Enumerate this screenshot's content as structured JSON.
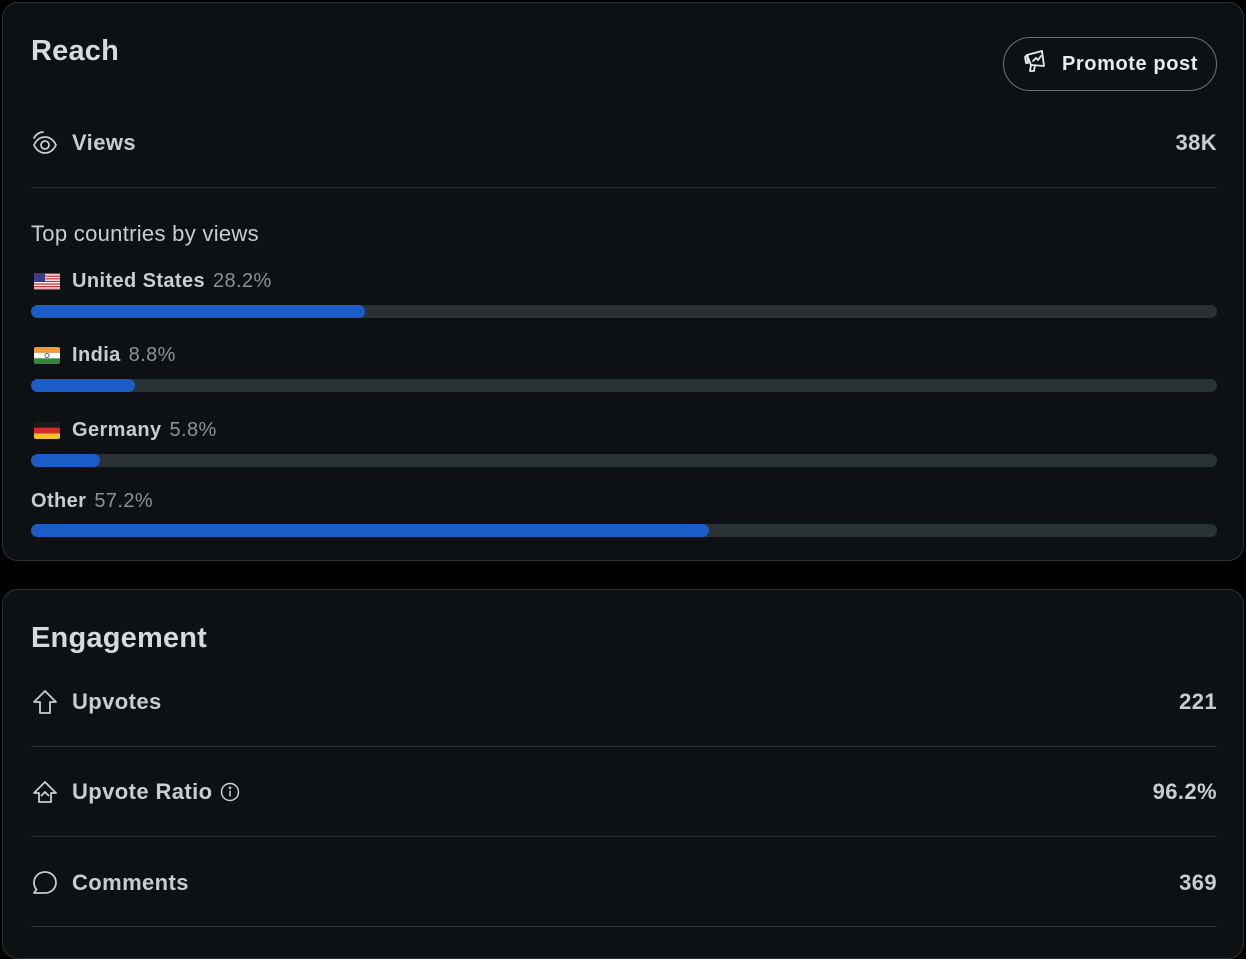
{
  "reach": {
    "title": "Reach",
    "promote_label": "Promote post",
    "views_label": "Views",
    "views_value": "38K",
    "countries_heading": "Top countries by views",
    "countries": [
      {
        "name": "United States",
        "pct_label": "28.2%",
        "pct": 28.2,
        "flag": "us-flag"
      },
      {
        "name": "India",
        "pct_label": "8.8%",
        "pct": 8.8,
        "flag": "india-flag"
      },
      {
        "name": "Germany",
        "pct_label": "5.8%",
        "pct": 5.8,
        "flag": "germany-flag"
      },
      {
        "name": "Other",
        "pct_label": "57.2%",
        "pct": 57.2,
        "flag": ""
      }
    ]
  },
  "engagement": {
    "title": "Engagement",
    "metrics": [
      {
        "label": "Upvotes",
        "value": "221",
        "icon": "upvote-icon"
      },
      {
        "label": "Upvote Ratio",
        "value": "96.2%",
        "icon": "upvote-ratio-icon",
        "info": true
      },
      {
        "label": "Comments",
        "value": "369",
        "icon": "comment-icon"
      }
    ]
  },
  "colors": {
    "card_bg": "#0e1113",
    "bar_fill": "#1c5cc8",
    "bar_track": "#2a3236"
  }
}
